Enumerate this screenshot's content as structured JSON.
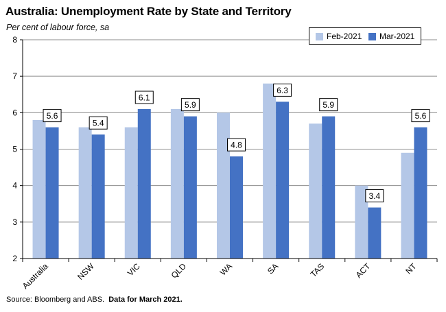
{
  "title": "Australia: Unemployment Rate by State and Territory",
  "subtitle": "Per cent of labour force, sa",
  "source_text": "Source: Bloomberg and ABS.",
  "source_bold": "Data for March 2021.",
  "colors": {
    "feb": "#b4c7e7",
    "mar": "#4472c4",
    "grid": "#8c8c8c"
  },
  "chart_data": {
    "type": "bar",
    "title": "Australia: Unemployment Rate by State and Territory",
    "subtitle": "Per cent of labour force, sa",
    "categories": [
      "Australia",
      "NSW",
      "VIC",
      "QLD",
      "WA",
      "SA",
      "TAS",
      "ACT",
      "NT"
    ],
    "series": [
      {
        "name": "Feb-2021",
        "values": [
          5.8,
          5.6,
          5.6,
          6.1,
          6.0,
          6.8,
          5.7,
          4.0,
          4.9
        ]
      },
      {
        "name": "Mar-2021",
        "values": [
          5.6,
          5.4,
          6.1,
          5.9,
          4.8,
          6.3,
          5.9,
          3.4,
          5.6
        ]
      }
    ],
    "data_labels": [
      "5.6",
      "5.4",
      "6.1",
      "5.9",
      "4.8",
      "6.3",
      "5.9",
      "3.4",
      "5.6"
    ],
    "ylim": [
      2,
      8
    ],
    "yticks": [
      "2",
      "3",
      "4",
      "5",
      "6",
      "7",
      "8"
    ],
    "grid": true,
    "legend": "top-right"
  }
}
